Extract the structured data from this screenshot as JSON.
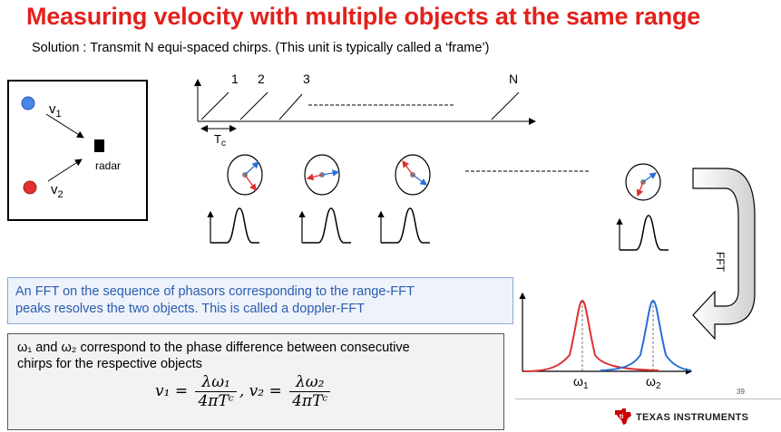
{
  "title": "Measuring velocity with multiple objects at the same range",
  "subtitle": "Solution : Transmit N equi-spaced chirps. (This unit is typically called a ‘frame’)",
  "scene": {
    "v1_label": "v",
    "v1_sub": "1",
    "v2_label": "v",
    "v2_sub": "2",
    "radar_label": "radar",
    "object1_color": "#4a86e8",
    "object2_color": "#e03030"
  },
  "chirps": {
    "labels": [
      "1",
      "2",
      "3",
      "N"
    ],
    "tc_label": "T",
    "tc_sub": "c"
  },
  "fft_label": "FFT",
  "doppler": {
    "omega1_label": "ω",
    "omega1_sub": "1",
    "omega2_label": "ω",
    "omega2_sub": "2",
    "series1_color": "#e03030",
    "series2_color": "#2a6fd6"
  },
  "fft_box": {
    "line1": "An FFT on the sequence of phasors corresponding to the range-FFT",
    "line2": "peaks resolves the two objects. This is called a doppler-FFT"
  },
  "omega_box": {
    "line1": "ω₁  and ω₂ correspond to the phase difference between consecutive",
    "line2": "chirps for the respective objects"
  },
  "formula": {
    "v1": "v₁ =",
    "num1": "λω₁",
    "den1": "4πTᶜ",
    "sep": ", v₂ =",
    "num2": "λω₂",
    "den2": "4πTᶜ"
  },
  "slide_number": "39",
  "footer": {
    "company": "Texas Instruments",
    "company_display": "TEXAS INSTRUMENTS",
    "brand_color": "#cc0000"
  }
}
